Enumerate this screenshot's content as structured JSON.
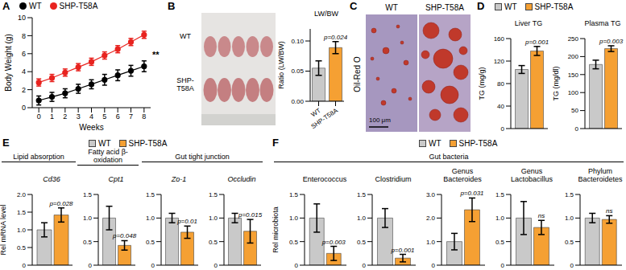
{
  "chart_data": [
    {
      "panel": "A",
      "type": "line",
      "x_label": "Weeks",
      "y_label": "Body Weight (g)",
      "legend": "top",
      "annotation": "**",
      "x": [
        0,
        1,
        2,
        3,
        4,
        5,
        6,
        7,
        8
      ],
      "xlim": [
        -0.5,
        8.5
      ],
      "xticks": [
        0,
        1,
        2,
        3,
        4,
        5,
        6,
        7,
        8
      ],
      "ylim": [
        0,
        10
      ],
      "yticks": [
        0,
        2,
        4,
        6,
        8,
        10
      ],
      "series": [
        {
          "name": "WT",
          "color": "#000000",
          "marker": "circle",
          "values": [
            0.8,
            1.2,
            1.6,
            2.1,
            2.6,
            3.1,
            3.6,
            4.1,
            4.6
          ],
          "errors": [
            0.5,
            0.5,
            0.5,
            0.5,
            0.5,
            0.6,
            0.6,
            0.6,
            0.6
          ]
        },
        {
          "name": "SHP-T58A",
          "color": "#e8231f",
          "marker": "circle",
          "values": [
            2.8,
            3.3,
            3.9,
            4.5,
            5.1,
            5.8,
            6.5,
            7.3,
            8.1
          ],
          "errors": [
            0.4,
            0.4,
            0.4,
            0.4,
            0.4,
            0.4,
            0.4,
            0.4,
            0.4
          ]
        }
      ]
    },
    {
      "panel": "B",
      "type": "bar",
      "image_labels": [
        "WT",
        "SHP-T58A"
      ],
      "title": "LW/BW",
      "y_label": "Ratio (LW/BW)",
      "annotation": "p=0.024",
      "categories": [
        "WT",
        "SHP-T58A"
      ],
      "values": [
        0.055,
        0.089
      ],
      "errors": [
        0.012,
        0.01
      ],
      "colors": [
        "#c9c9c9",
        "#f5a033"
      ],
      "ylim": [
        0,
        0.12
      ],
      "yticks": [
        {
          "value": 0,
          "label": "0.00"
        },
        0.05,
        {
          "value": 0.1,
          "label": "0.10"
        }
      ]
    },
    {
      "panel": "C",
      "type": "image",
      "title": "Oil-Red O",
      "labels": [
        "WT",
        "SHP-T58A"
      ],
      "scale_bar": "100 μm"
    },
    {
      "panel": "D",
      "type": "bar",
      "legend": "top",
      "title": "Liver TG",
      "y_label": "TG (mg/g)",
      "annotation": "p=0.001",
      "categories": [
        null
      ],
      "tick_labels": "y",
      "ylim": [
        0,
        160
      ],
      "yticks": [
        0,
        40,
        80,
        120,
        160
      ],
      "series": [
        {
          "name": "WT",
          "color": "#c9c9c9",
          "values": [
            105
          ],
          "errors": [
            7
          ]
        },
        {
          "name": "SHP-T58A",
          "color": "#f5a033",
          "values": [
            138
          ],
          "errors": [
            8
          ]
        }
      ]
    },
    {
      "type": "bar",
      "title": "Plasma TG",
      "y_label": "TG (mg/dl)",
      "annotation": "p=0.003",
      "categories": [
        null
      ],
      "tick_labels": "y",
      "ylim": [
        0,
        250
      ],
      "yticks": [
        0,
        50,
        100,
        150,
        200,
        250
      ],
      "series": [
        {
          "name": "WT",
          "color": "#c9c9c9",
          "values": [
            178
          ],
          "errors": [
            12
          ]
        },
        {
          "name": "SHP-T58A",
          "color": "#f5a033",
          "values": [
            222
          ],
          "errors": [
            8
          ]
        }
      ]
    },
    {
      "panel": "E",
      "type": "bar",
      "legend": "top",
      "group": "Lipid absorption",
      "title": "Cd36",
      "y_label": "Rel mRNA level",
      "annotation": "p=0.028",
      "categories": [
        null
      ],
      "tick_labels": "y",
      "ylim": [
        0,
        2
      ],
      "yticks": [
        0,
        0.5,
        {
          "value": 1,
          "label": "1.0"
        },
        1.5,
        {
          "value": 2,
          "label": "2.0"
        }
      ],
      "series": [
        {
          "name": "WT",
          "color": "#c9c9c9",
          "values": [
            1.0
          ],
          "errors": [
            0.2
          ]
        },
        {
          "name": "SHP-T58A",
          "color": "#f5a033",
          "values": [
            1.42
          ],
          "errors": [
            0.2
          ]
        }
      ]
    },
    {
      "type": "bar",
      "group": "Fatty acid β-oxidation",
      "title": "Cpt1",
      "annotation": "p=0.048",
      "categories": [
        null
      ],
      "tick_labels": "y",
      "ylim": [
        0,
        1.5
      ],
      "yticks": [
        0,
        0.5,
        {
          "value": 1,
          "label": "1.0"
        },
        1.5
      ],
      "series": [
        {
          "name": "WT",
          "color": "#c9c9c9",
          "values": [
            1.0
          ],
          "errors": [
            0.25
          ]
        },
        {
          "name": "SHP-T58A",
          "color": "#f5a033",
          "values": [
            0.42
          ],
          "errors": [
            0.1
          ]
        }
      ]
    },
    {
      "type": "bar",
      "group": "Gut tight junction",
      "title": "Zo-1",
      "annotation": "p=0.01",
      "categories": [
        null
      ],
      "tick_labels": "y",
      "ylim": [
        0,
        1.5
      ],
      "yticks": [
        0,
        0.5,
        {
          "value": 1,
          "label": "1.0"
        },
        1.5
      ],
      "series": [
        {
          "name": "WT",
          "color": "#c9c9c9",
          "values": [
            1.0
          ],
          "errors": [
            0.1
          ]
        },
        {
          "name": "SHP-T58A",
          "color": "#f5a033",
          "values": [
            0.7
          ],
          "errors": [
            0.13
          ]
        }
      ]
    },
    {
      "type": "bar",
      "title": "Occludin",
      "annotation": "p=0.015",
      "categories": [
        null
      ],
      "tick_labels": "y",
      "ylim": [
        0,
        1.5
      ],
      "yticks": [
        0,
        0.5,
        {
          "value": 1,
          "label": "1.0"
        },
        1.5
      ],
      "series": [
        {
          "name": "WT",
          "color": "#c9c9c9",
          "values": [
            1.0
          ],
          "errors": [
            0.1
          ]
        },
        {
          "name": "SHP-T58A",
          "color": "#f5a033",
          "values": [
            0.72
          ],
          "errors": [
            0.25
          ]
        }
      ]
    },
    {
      "panel": "F",
      "type": "bar",
      "legend": "top",
      "group": "Gut bacteria",
      "title": "Enterococcus",
      "y_label": "Rel microbiota",
      "annotation": "p=0.003",
      "categories": [
        null
      ],
      "tick_labels": "y",
      "ylim": [
        0,
        1.5
      ],
      "yticks": [
        0,
        0.5,
        {
          "value": 1,
          "label": "1.0"
        },
        1.5
      ],
      "series": [
        {
          "name": "WT",
          "color": "#c9c9c9",
          "values": [
            1.0
          ],
          "errors": [
            0.3
          ]
        },
        {
          "name": "SHP-T58A",
          "color": "#f5a033",
          "values": [
            0.25
          ],
          "errors": [
            0.15
          ]
        }
      ]
    },
    {
      "type": "bar",
      "title": "Clostridium",
      "annotation": "p=0.001",
      "categories": [
        null
      ],
      "tick_labels": "y",
      "ylim": [
        0,
        1.5
      ],
      "yticks": [
        0,
        0.5,
        {
          "value": 1,
          "label": "1.0"
        },
        1.5
      ],
      "series": [
        {
          "name": "WT",
          "color": "#c9c9c9",
          "values": [
            1.0
          ],
          "errors": [
            0.2
          ]
        },
        {
          "name": "SHP-T58A",
          "color": "#f5a033",
          "values": [
            0.15
          ],
          "errors": [
            0.08
          ]
        }
      ]
    },
    {
      "type": "bar",
      "title": "Genus Bacteroides",
      "annotation": "p=0.031",
      "categories": [
        null
      ],
      "tick_labels": "y",
      "ylim": [
        0,
        3
      ],
      "yticks": [
        0,
        {
          "value": 1,
          "label": "1.0"
        },
        {
          "value": 2,
          "label": "2.0"
        },
        {
          "value": 3,
          "label": "3.0"
        }
      ],
      "series": [
        {
          "name": "WT",
          "color": "#c9c9c9",
          "values": [
            1.0
          ],
          "errors": [
            0.35
          ]
        },
        {
          "name": "SHP-T58A",
          "color": "#f5a033",
          "values": [
            2.35
          ],
          "errors": [
            0.5
          ]
        }
      ]
    },
    {
      "type": "bar",
      "title": "Genus Lactobacillus",
      "annotation": "ns",
      "categories": [
        null
      ],
      "tick_labels": "y",
      "ylim": [
        0,
        1.5
      ],
      "yticks": [
        0,
        0.5,
        {
          "value": 1,
          "label": "1.0"
        },
        1.5
      ],
      "series": [
        {
          "name": "WT",
          "color": "#c9c9c9",
          "values": [
            1.0
          ],
          "errors": [
            0.35
          ]
        },
        {
          "name": "SHP-T58A",
          "color": "#f5a033",
          "values": [
            0.8
          ],
          "errors": [
            0.15
          ]
        }
      ]
    },
    {
      "type": "bar",
      "title": "Phylum Bacteroidetes",
      "annotation": "ns",
      "categories": [
        null
      ],
      "tick_labels": "y",
      "ylim": [
        0,
        1.5
      ],
      "yticks": [
        0,
        0.5,
        {
          "value": 1,
          "label": "1.0"
        },
        1.5
      ],
      "series": [
        {
          "name": "WT",
          "color": "#c9c9c9",
          "values": [
            1.0
          ],
          "errors": [
            0.1
          ]
        },
        {
          "name": "SHP-T58A",
          "color": "#f5a033",
          "values": [
            0.97
          ],
          "errors": [
            0.08
          ]
        }
      ]
    }
  ]
}
